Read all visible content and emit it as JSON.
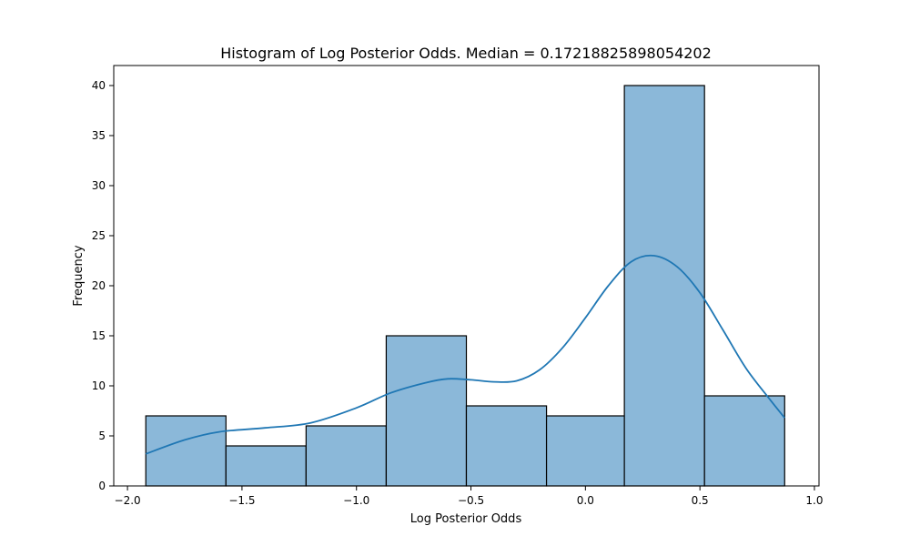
{
  "chart_data": {
    "type": "bar",
    "title": "Histogram of Log Posterior Odds. Median = 0.17218825898054202",
    "xlabel": "Log Posterior Odds",
    "ylabel": "Frequency",
    "xlim": [
      -2.06,
      1.02
    ],
    "ylim": [
      0,
      42
    ],
    "grid": false,
    "bins": [
      {
        "start": -1.92,
        "end": -1.57,
        "count": 7
      },
      {
        "start": -1.57,
        "end": -1.22,
        "count": 4
      },
      {
        "start": -1.22,
        "end": -0.87,
        "count": 6
      },
      {
        "start": -0.87,
        "end": -0.52,
        "count": 15
      },
      {
        "start": -0.52,
        "end": -0.17,
        "count": 8
      },
      {
        "start": -0.17,
        "end": 0.17,
        "count": 7
      },
      {
        "start": 0.17,
        "end": 0.52,
        "count": 40
      },
      {
        "start": 0.52,
        "end": 0.87,
        "count": 9
      }
    ],
    "kde": {
      "x": [
        -1.92,
        -1.75,
        -1.6,
        -1.4,
        -1.2,
        -1.0,
        -0.85,
        -0.7,
        -0.6,
        -0.5,
        -0.4,
        -0.3,
        -0.2,
        -0.1,
        0.0,
        0.1,
        0.2,
        0.3,
        0.4,
        0.5,
        0.6,
        0.7,
        0.8,
        0.87
      ],
      "y": [
        3.2,
        4.6,
        5.4,
        5.8,
        6.3,
        7.8,
        9.3,
        10.3,
        10.7,
        10.6,
        10.4,
        10.5,
        11.6,
        13.8,
        16.8,
        20.0,
        22.4,
        23.0,
        21.9,
        19.3,
        15.6,
        11.8,
        8.8,
        6.8
      ]
    },
    "x_ticks": [
      -2.0,
      -1.5,
      -1.0,
      -0.5,
      0.0,
      0.5,
      1.0
    ],
    "x_tick_labels": [
      "−2.0",
      "−1.5",
      "−1.0",
      "−0.5",
      "0.0",
      "0.5",
      "1.0"
    ],
    "y_ticks": [
      0,
      5,
      10,
      15,
      20,
      25,
      30,
      35,
      40
    ],
    "y_tick_labels": [
      "0",
      "5",
      "10",
      "15",
      "20",
      "25",
      "30",
      "35",
      "40"
    ],
    "colors": {
      "bar_fill": "#8bb8d9",
      "bar_edge": "#000000",
      "kde_line": "#1f77b4"
    }
  }
}
